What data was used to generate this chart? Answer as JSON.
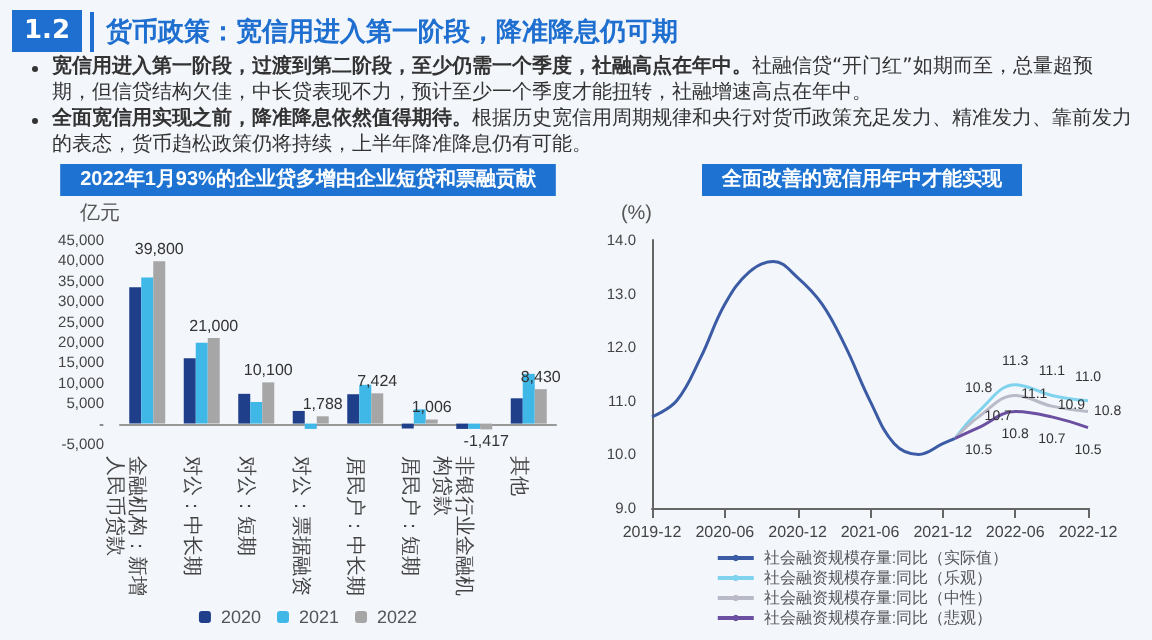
{
  "chart_data": [
    {
      "type": "other",
      "title": "货币政策：宽信用进入第一阶段，降准降息仍可期",
      "annotations": [
        "1.2",
        "宽信用进入第一阶段，过渡到第二阶段，至少仍需一个季度，社融高点在年中。",
        "社融信贷“开门红”如期而至，总量超预期，但信贷结构欠佳，中长贷表现不力，预计至少一个季度才能扭转，社融增速高点在年中。",
        "全面宽信用实现之前，降准降息依然值得期待。",
        "根据历史宽信用周期规律和央行对货币政策充足发力、精准发力、靠前发力的表态，货币趋松政策仍将持续，上半年降准降息仍有可能。"
      ]
    },
    {
      "type": "bar",
      "title": "2022年1月93%的企业贷多增由企业短贷和票融贡献",
      "ylabel": "亿元",
      "categories": [
        "金融机构：新增人民币贷款",
        "对公：中长期",
        "对公：短期",
        "对公：票据融资",
        "居民户：中长期",
        "居民户：短期",
        "非银行业金融机构贷款",
        "其他"
      ],
      "series": [
        {
          "name": "2020",
          "color": "#1f3f8a",
          "values": [
            33400,
            16000,
            7300,
            3100,
            7200,
            -1200,
            -1300,
            6200
          ]
        },
        {
          "name": "2021",
          "color": "#3fb8e8",
          "values": [
            35800,
            19800,
            5300,
            -1300,
            9500,
            3500,
            -1300,
            12200
          ]
        },
        {
          "name": "2022",
          "color": "#a6a6a6",
          "values": [
            39800,
            21000,
            10100,
            1788,
            7424,
            1006,
            -1417,
            8430
          ],
          "value_labels": [
            "39,800",
            "21,000",
            "10,100",
            "1,788",
            "7,424",
            "1,006",
            "-1,417",
            "8,430"
          ]
        }
      ],
      "ylim": [
        -5000,
        45000
      ],
      "yticks": [
        {
          "value": -5000,
          "label": "-5,000"
        },
        {
          "value": 0,
          "label": "-"
        },
        {
          "value": 5000,
          "label": "5,000"
        },
        {
          "value": 10000,
          "label": "10,000"
        },
        {
          "value": 15000,
          "label": "15,000"
        },
        {
          "value": 20000,
          "label": "20,000"
        },
        {
          "value": 25000,
          "label": "25,000"
        },
        {
          "value": 30000,
          "label": "30,000"
        },
        {
          "value": 35000,
          "label": "35,000"
        },
        {
          "value": 40000,
          "label": "40,000"
        },
        {
          "value": 45000,
          "label": "45,000"
        }
      ],
      "grid": false,
      "legend": "bottom"
    },
    {
      "type": "line",
      "title": "全面改善的宽信用年中才能实现",
      "ylabel": "(%)",
      "series": [
        {
          "name": "社会融资规模存量:同比（实际值）",
          "color": "#3b5ba5",
          "x": [
            "2019-12",
            "2020-02",
            "2020-04",
            "2020-06",
            "2020-08",
            "2020-10",
            "2020-12",
            "2021-02",
            "2021-04",
            "2021-06",
            "2021-08",
            "2021-10",
            "2021-12",
            "2022-01"
          ],
          "values": [
            10.7,
            11.0,
            11.8,
            12.8,
            13.4,
            13.6,
            13.3,
            12.8,
            12.0,
            11.0,
            10.2,
            10.0,
            10.2,
            10.3
          ]
        },
        {
          "name": "社会融资规模存量:同比（乐观）",
          "color": "#7fd3ee",
          "x": [
            "2022-01",
            "2022-03",
            "2022-06",
            "2022-09",
            "2022-12"
          ],
          "values": [
            10.3,
            10.8,
            11.3,
            11.1,
            11.0
          ],
          "value_labels": [
            null,
            "10.8",
            "11.3",
            "11.1",
            "11.0"
          ]
        },
        {
          "name": "社会融资规模存量:同比（中性）",
          "color": "#b9b9c8",
          "x": [
            "2022-01",
            "2022-03",
            "2022-06",
            "2022-09",
            "2022-12"
          ],
          "values": [
            10.3,
            10.7,
            11.1,
            10.9,
            10.8
          ],
          "value_labels": [
            null,
            "10.7",
            "11.1",
            "10.9",
            "10.8"
          ]
        },
        {
          "name": "社会融资规模存量:同比（悲观）",
          "color": "#6b4fa0",
          "x": [
            "2022-01",
            "2022-03",
            "2022-06",
            "2022-09",
            "2022-12"
          ],
          "values": [
            10.3,
            10.5,
            10.8,
            10.7,
            10.5
          ],
          "value_labels": [
            null,
            "10.5",
            "10.8",
            "10.7",
            "10.5"
          ]
        }
      ],
      "xlim": [
        "2019-12",
        "2022-12"
      ],
      "xticks": [
        "2019-12",
        "2020-06",
        "2020-12",
        "2021-06",
        "2021-12",
        "2022-06",
        "2022-12"
      ],
      "ylim": [
        9,
        14
      ],
      "yticks": [
        {
          "value": 9,
          "label": "9.0"
        },
        {
          "value": 10,
          "label": "10.0"
        },
        {
          "value": 11,
          "label": "11.0"
        },
        {
          "value": 12,
          "label": "12.0"
        },
        {
          "value": 13,
          "label": "13.0"
        },
        {
          "value": 14,
          "label": "14.0"
        }
      ],
      "grid": false,
      "legend": "bottom",
      "marker": "none",
      "line_style": "solid"
    }
  ]
}
